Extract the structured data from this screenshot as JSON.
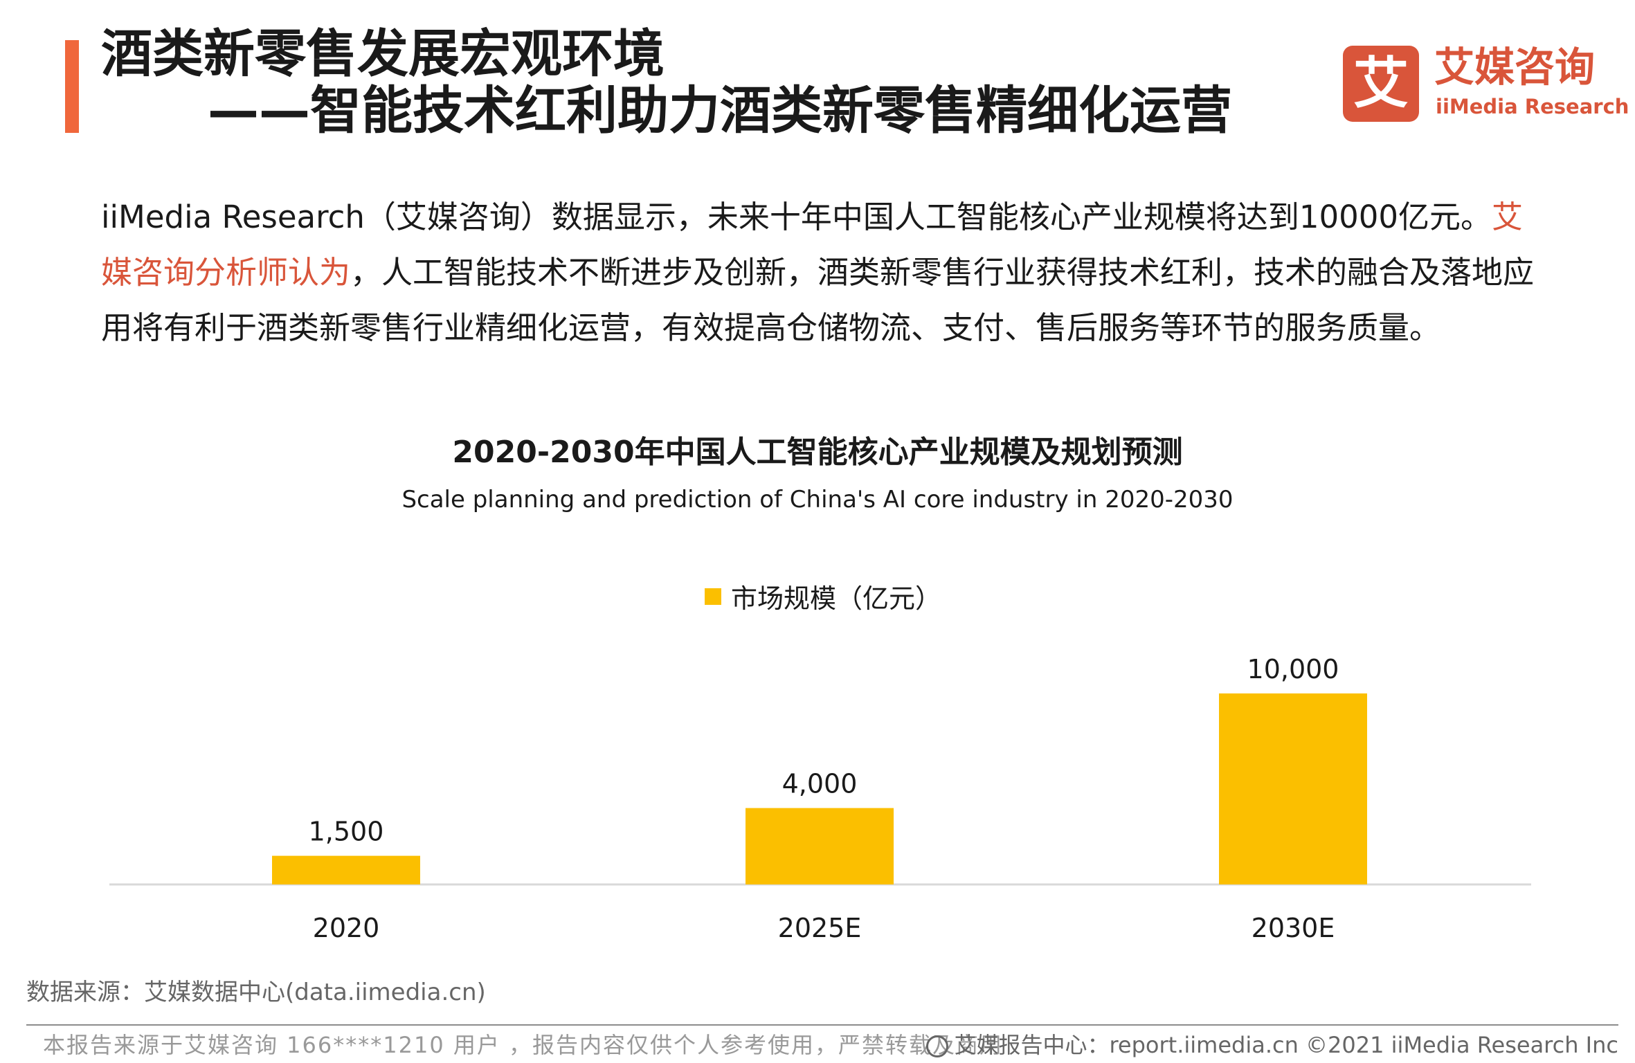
{
  "header": {
    "title_line1": "酒类新零售发展宏观环境",
    "title_line2": "——智能技术红利助力酒类新零售精细化运营",
    "accent_color": "#f0673c"
  },
  "logo": {
    "mark": "艾",
    "cn": "艾媒咨询",
    "en": "iiMedia Research",
    "color": "#d9553a"
  },
  "paragraph": {
    "part1": "iiMedia Research（艾媒咨询）数据显示，未来十年中国人工智能核心产业规模将达到10000亿元。",
    "highlight": "艾媒咨询分析师认为",
    "part2": "，人工智能技术不断进步及创新，酒类新零售行业获得技术红利，技术的融合及落地应用将有利于酒类新零售行业精细化运营，有效提高仓储物流、支付、售后服务等环节的服务质量。"
  },
  "chart_data": {
    "type": "bar",
    "title": "2020-2030年中国人工智能核心产业规模及规划预测",
    "subtitle": "Scale planning and prediction of China's AI core industry in 2020-2030",
    "categories": [
      "2020",
      "2025E",
      "2030E"
    ],
    "series": [
      {
        "name": "市场规模（亿元）",
        "values": [
          1500,
          4000,
          10000
        ],
        "labels": [
          "1,500",
          "4,000",
          "10,000"
        ],
        "color": "#fbbf00"
      }
    ],
    "ylim": [
      0,
      10000
    ],
    "grid": false,
    "legend_position": "top-center"
  },
  "source": "数据来源：艾媒数据中心(data.iimedia.cn)",
  "footer": {
    "left": "本报告来源于艾媒咨询 166****1210 用户 ，报告内容仅供个人参考使用，严禁转载及商用",
    "right": "艾媒报告中心：report.iimedia.cn ©2021 iiMedia Research Inc",
    "icon": "globe-icon"
  }
}
